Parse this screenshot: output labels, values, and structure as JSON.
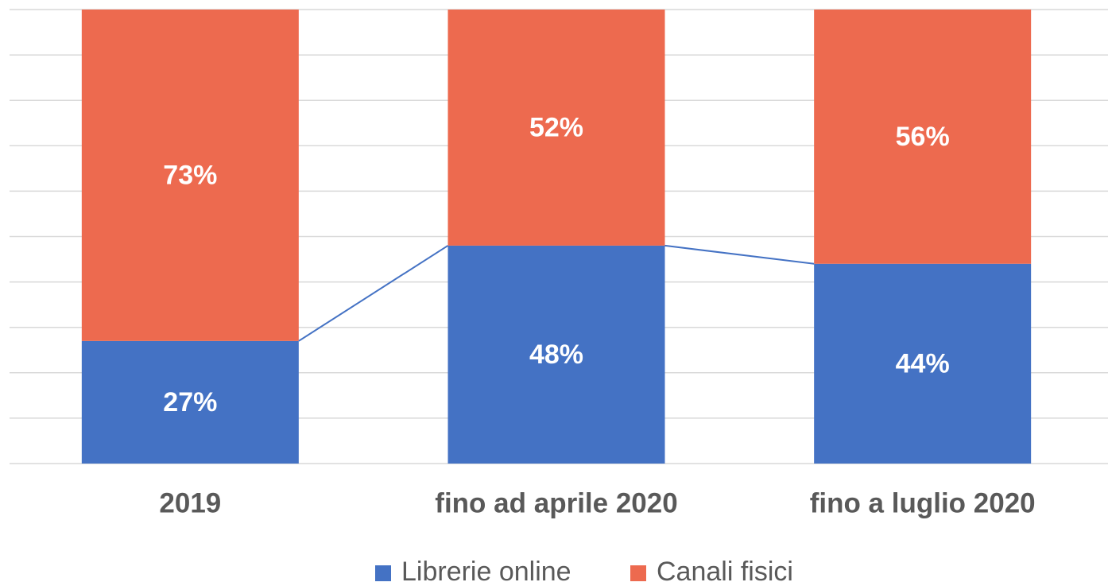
{
  "chart_data": {
    "type": "stacked_bar",
    "categories": [
      "2019",
      "fino ad aprile 2020",
      "fino a luglio 2020"
    ],
    "series": [
      {
        "name": "Librerie online",
        "color": "#4472c4",
        "values": [
          27,
          48,
          44
        ],
        "value_labels": [
          "27%",
          "48%",
          "44%"
        ]
      },
      {
        "name": "Canali fisici",
        "color": "#ed6a4f",
        "values": [
          73,
          52,
          56
        ],
        "value_labels": [
          "73%",
          "52%",
          "56%"
        ]
      }
    ],
    "ylim": [
      0,
      100
    ],
    "yticks": [
      0,
      10,
      20,
      30,
      40,
      50,
      60,
      70,
      80,
      90,
      100
    ],
    "grid": true,
    "series_lines": true,
    "legend": "bottom"
  }
}
